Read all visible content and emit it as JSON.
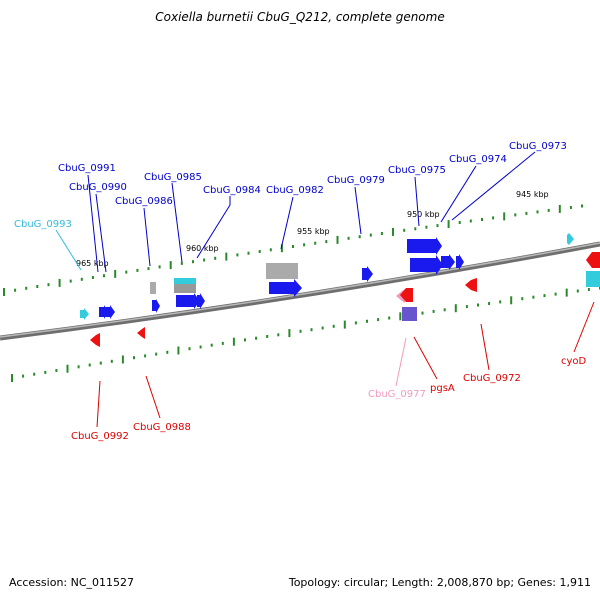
{
  "title": "Coxiella burnetii CbuG_Q212, complete genome",
  "footer": {
    "accession": "Accession: NC_011527",
    "summary": "Topology: circular; Length: 2,008,870 bp; Genes: 1,911"
  },
  "colors": {
    "forward_cds": "#1a1aee",
    "forward_cds_dark": "#0000aa",
    "reverse_cds": "#ee1111",
    "trna": "#33ccdd",
    "pseudo": "#aaaaaa",
    "misc_purple": "#6655cc",
    "light_pink": "#f29ac0",
    "axis_tick": "#2a8a2a",
    "backbone": "#777777"
  },
  "scale_labels": [
    "965 kbp",
    "960 kbp",
    "955 kbp",
    "950 kbp",
    "945 kbp"
  ],
  "gene_labels": {
    "top": [
      "CbuG_0991",
      "CbuG_0990",
      "CbuG_0993",
      "CbuG_0986",
      "CbuG_0985",
      "CbuG_0984",
      "CbuG_0982",
      "CbuG_0979",
      "CbuG_0975",
      "CbuG_0974",
      "CbuG_0973"
    ],
    "bottom": [
      "CbuG_0992",
      "CbuG_0988",
      "CbuG_0977",
      "pgsA",
      "CbuG_0972",
      "cyoD"
    ]
  }
}
